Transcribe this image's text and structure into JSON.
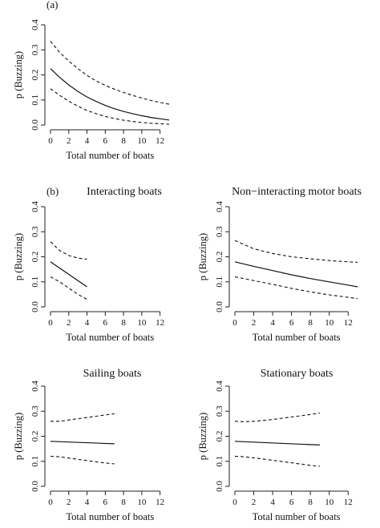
{
  "chart_data": [
    {
      "type": "line",
      "panel_letter": "(a)",
      "title": "",
      "xlabel": "Total number of boats",
      "ylabel": "p (Buzzing)",
      "xlim": [
        0,
        13
      ],
      "ylim": [
        0,
        0.4
      ],
      "xticks": [
        "0",
        "2",
        "4",
        "6",
        "8",
        "10",
        "12"
      ],
      "yticks": [
        "0.0",
        "0.1",
        "0.2",
        "0.3",
        "0.4"
      ],
      "grid": false,
      "series": [
        {
          "style": "solid",
          "x": [
            0,
            1,
            2,
            3,
            4,
            5,
            6,
            7,
            8,
            9,
            10,
            11,
            12,
            13
          ],
          "y": [
            0.225,
            0.19,
            0.16,
            0.134,
            0.112,
            0.094,
            0.078,
            0.065,
            0.054,
            0.045,
            0.037,
            0.03,
            0.025,
            0.02
          ]
        },
        {
          "style": "dashed",
          "x": [
            0,
            1,
            2,
            3,
            4,
            5,
            6,
            7,
            8,
            9,
            10,
            11,
            12,
            13
          ],
          "y": [
            0.335,
            0.29,
            0.255,
            0.225,
            0.198,
            0.176,
            0.158,
            0.143,
            0.13,
            0.118,
            0.108,
            0.098,
            0.09,
            0.083
          ]
        },
        {
          "style": "dashed",
          "x": [
            0,
            1,
            2,
            3,
            4,
            5,
            6,
            7,
            8,
            9,
            10,
            11,
            12,
            13
          ],
          "y": [
            0.145,
            0.118,
            0.095,
            0.075,
            0.058,
            0.045,
            0.034,
            0.026,
            0.019,
            0.014,
            0.01,
            0.007,
            0.005,
            0.003
          ]
        }
      ]
    },
    {
      "type": "line",
      "panel_letter": "(b)",
      "title": "Interacting boats",
      "xlabel": "Total number of boats",
      "ylabel": "p (Buzzing)",
      "xlim": [
        0,
        13
      ],
      "ylim": [
        0,
        0.4
      ],
      "xticks": [
        "0",
        "2",
        "4",
        "6",
        "8",
        "10",
        "12"
      ],
      "yticks": [
        "0.0",
        "0.1",
        "0.2",
        "0.3",
        "0.4"
      ],
      "grid": false,
      "series": [
        {
          "style": "solid",
          "x": [
            0,
            1,
            2,
            3,
            4
          ],
          "y": [
            0.18,
            0.155,
            0.13,
            0.105,
            0.08
          ]
        },
        {
          "style": "dashed",
          "x": [
            0,
            1,
            2,
            3,
            4
          ],
          "y": [
            0.26,
            0.225,
            0.205,
            0.195,
            0.19
          ]
        },
        {
          "style": "dashed",
          "x": [
            0,
            1,
            2,
            3,
            4
          ],
          "y": [
            0.12,
            0.1,
            0.075,
            0.05,
            0.03
          ]
        }
      ]
    },
    {
      "type": "line",
      "panel_letter": "",
      "title": "Non−interacting motor boats",
      "xlabel": "Total number of boats",
      "ylabel": "p (Buzzing)",
      "xlim": [
        0,
        13
      ],
      "ylim": [
        0,
        0.4
      ],
      "xticks": [
        "0",
        "2",
        "4",
        "6",
        "8",
        "10",
        "12"
      ],
      "yticks": [
        "0.0",
        "0.1",
        "0.2",
        "0.3",
        "0.4"
      ],
      "grid": false,
      "series": [
        {
          "style": "solid",
          "x": [
            0,
            2,
            4,
            6,
            8,
            10,
            12,
            13
          ],
          "y": [
            0.18,
            0.162,
            0.145,
            0.128,
            0.113,
            0.1,
            0.087,
            0.08
          ]
        },
        {
          "style": "dashed",
          "x": [
            0,
            2,
            4,
            6,
            8,
            10,
            12,
            13
          ],
          "y": [
            0.265,
            0.232,
            0.213,
            0.2,
            0.192,
            0.185,
            0.18,
            0.178
          ]
        },
        {
          "style": "dashed",
          "x": [
            0,
            2,
            4,
            6,
            8,
            10,
            12,
            13
          ],
          "y": [
            0.12,
            0.105,
            0.09,
            0.074,
            0.06,
            0.048,
            0.038,
            0.033
          ]
        }
      ]
    },
    {
      "type": "line",
      "panel_letter": "",
      "title": "Sailing boats",
      "xlabel": "Total number of boats",
      "ylabel": "p (Buzzing)",
      "xlim": [
        0,
        13
      ],
      "ylim": [
        0,
        0.4
      ],
      "xticks": [
        "0",
        "2",
        "4",
        "6",
        "8",
        "10",
        "12"
      ],
      "yticks": [
        "0.0",
        "0.1",
        "0.2",
        "0.3",
        "0.4"
      ],
      "grid": false,
      "series": [
        {
          "style": "solid",
          "x": [
            0,
            7
          ],
          "y": [
            0.18,
            0.17
          ]
        },
        {
          "style": "dashed",
          "x": [
            0,
            1,
            2,
            3,
            4,
            5,
            6,
            7
          ],
          "y": [
            0.26,
            0.26,
            0.265,
            0.27,
            0.275,
            0.28,
            0.285,
            0.29
          ]
        },
        {
          "style": "dashed",
          "x": [
            0,
            1,
            2,
            3,
            4,
            5,
            6,
            7
          ],
          "y": [
            0.12,
            0.118,
            0.113,
            0.108,
            0.103,
            0.098,
            0.093,
            0.09
          ]
        }
      ]
    },
    {
      "type": "line",
      "panel_letter": "",
      "title": "Stationary boats",
      "xlabel": "Total number of boats",
      "ylabel": "p (Buzzing)",
      "xlim": [
        0,
        13
      ],
      "ylim": [
        0,
        0.4
      ],
      "xticks": [
        "0",
        "2",
        "4",
        "6",
        "8",
        "10",
        "12"
      ],
      "yticks": [
        "0.0",
        "0.1",
        "0.2",
        "0.3",
        "0.4"
      ],
      "grid": false,
      "series": [
        {
          "style": "solid",
          "x": [
            0,
            9
          ],
          "y": [
            0.18,
            0.165
          ]
        },
        {
          "style": "dashed",
          "x": [
            0,
            1,
            2,
            3,
            4,
            5,
            6,
            7,
            8,
            9
          ],
          "y": [
            0.26,
            0.258,
            0.26,
            0.263,
            0.267,
            0.272,
            0.277,
            0.282,
            0.287,
            0.293
          ]
        },
        {
          "style": "dashed",
          "x": [
            0,
            1,
            2,
            3,
            4,
            5,
            6,
            7,
            8,
            9
          ],
          "y": [
            0.12,
            0.118,
            0.114,
            0.109,
            0.104,
            0.099,
            0.094,
            0.089,
            0.084,
            0.08
          ]
        }
      ]
    }
  ]
}
